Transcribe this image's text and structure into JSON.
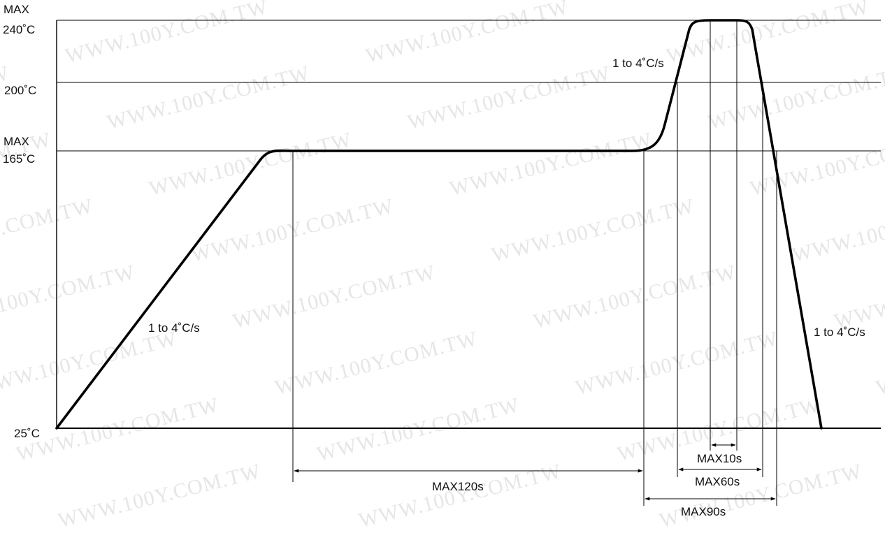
{
  "watermark": "WWW.100Y.COM.TW",
  "y_axis_labels": {
    "t240_max": "MAX",
    "t240": "240˚C",
    "t200": "200˚C",
    "t165_max": "MAX",
    "t165": "165˚C",
    "t25": "25˚C"
  },
  "rate_labels": {
    "ramp_up": "1 to 4˚C/s",
    "reflow_rise": "1 to 4˚C/s",
    "cool_down": "1 to 4˚C/s"
  },
  "durations": {
    "soak": "MAX120s",
    "peak": "MAX10s",
    "above_200": "MAX60s",
    "above_165": "MAX90s"
  },
  "colors": {
    "curve": "#000000",
    "lines": "#000000",
    "watermark": "#e6e6e6"
  }
}
